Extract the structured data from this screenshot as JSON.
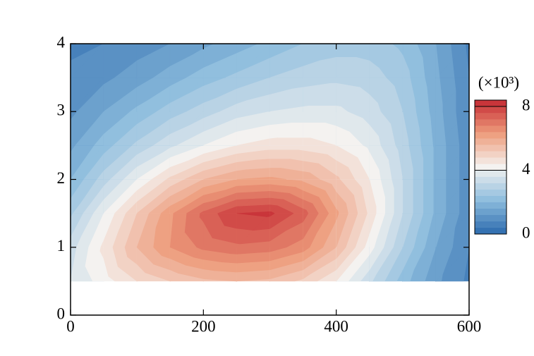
{
  "chart_data": {
    "type": "contour",
    "x": [
      0,
      50,
      100,
      150,
      200,
      250,
      300,
      350,
      400,
      450,
      500,
      550,
      600
    ],
    "y": [
      0.5,
      1.0,
      1.5,
      2.0,
      2.5,
      3.0,
      3.5,
      4.0
    ],
    "z": [
      [
        3.6,
        4.2,
        4.8,
        5.2,
        5.5,
        5.6,
        5.5,
        5.1,
        4.4,
        3.3,
        2.2,
        1.3,
        0.7
      ],
      [
        3.4,
        4.5,
        5.6,
        6.4,
        6.9,
        7.1,
        7.0,
        6.6,
        5.6,
        4.2,
        2.8,
        1.6,
        0.8
      ],
      [
        2.7,
        4.0,
        5.2,
        6.3,
        7.3,
        8.0,
        8.1,
        7.4,
        6.1,
        4.7,
        3.2,
        1.9,
        0.9
      ],
      [
        2.0,
        3.0,
        4.0,
        4.9,
        5.6,
        6.0,
        6.1,
        5.9,
        5.3,
        4.4,
        3.2,
        1.9,
        0.9
      ],
      [
        1.5,
        2.2,
        2.9,
        3.5,
        4.0,
        4.4,
        4.6,
        4.6,
        4.4,
        3.9,
        3.0,
        1.9,
        0.9
      ],
      [
        1.1,
        1.6,
        2.1,
        2.6,
        3.0,
        3.4,
        3.6,
        3.7,
        3.7,
        3.4,
        2.8,
        1.8,
        0.8
      ],
      [
        0.9,
        1.1,
        1.4,
        1.8,
        2.2,
        2.5,
        2.8,
        3.0,
        3.1,
        3.0,
        2.6,
        1.7,
        0.8
      ],
      [
        0.7,
        0.8,
        1.0,
        1.2,
        1.5,
        1.8,
        2.1,
        2.4,
        2.6,
        2.6,
        2.3,
        1.6,
        0.7
      ]
    ],
    "levels": [
      0,
      0.4,
      0.8,
      1.2,
      1.6,
      2.0,
      2.4,
      2.8,
      3.2,
      3.6,
      4.0,
      4.4,
      4.8,
      5.2,
      5.6,
      6.0,
      6.4,
      6.8,
      7.2,
      7.6,
      8.0,
      8.4
    ],
    "colormap": [
      "#2c6aae",
      "#8cbcdd",
      "#f4f2f0",
      "#ee9d7c",
      "#c52a33"
    ],
    "xlim": [
      0,
      600
    ],
    "xticks": [
      0,
      200,
      400,
      600
    ],
    "ylim": [
      0,
      4
    ],
    "yticks": [
      0,
      1,
      2,
      3,
      4
    ],
    "colorbar_label": "(×10³)",
    "zlim": [
      0,
      8.4
    ],
    "zticks": [
      0,
      4,
      8
    ]
  }
}
